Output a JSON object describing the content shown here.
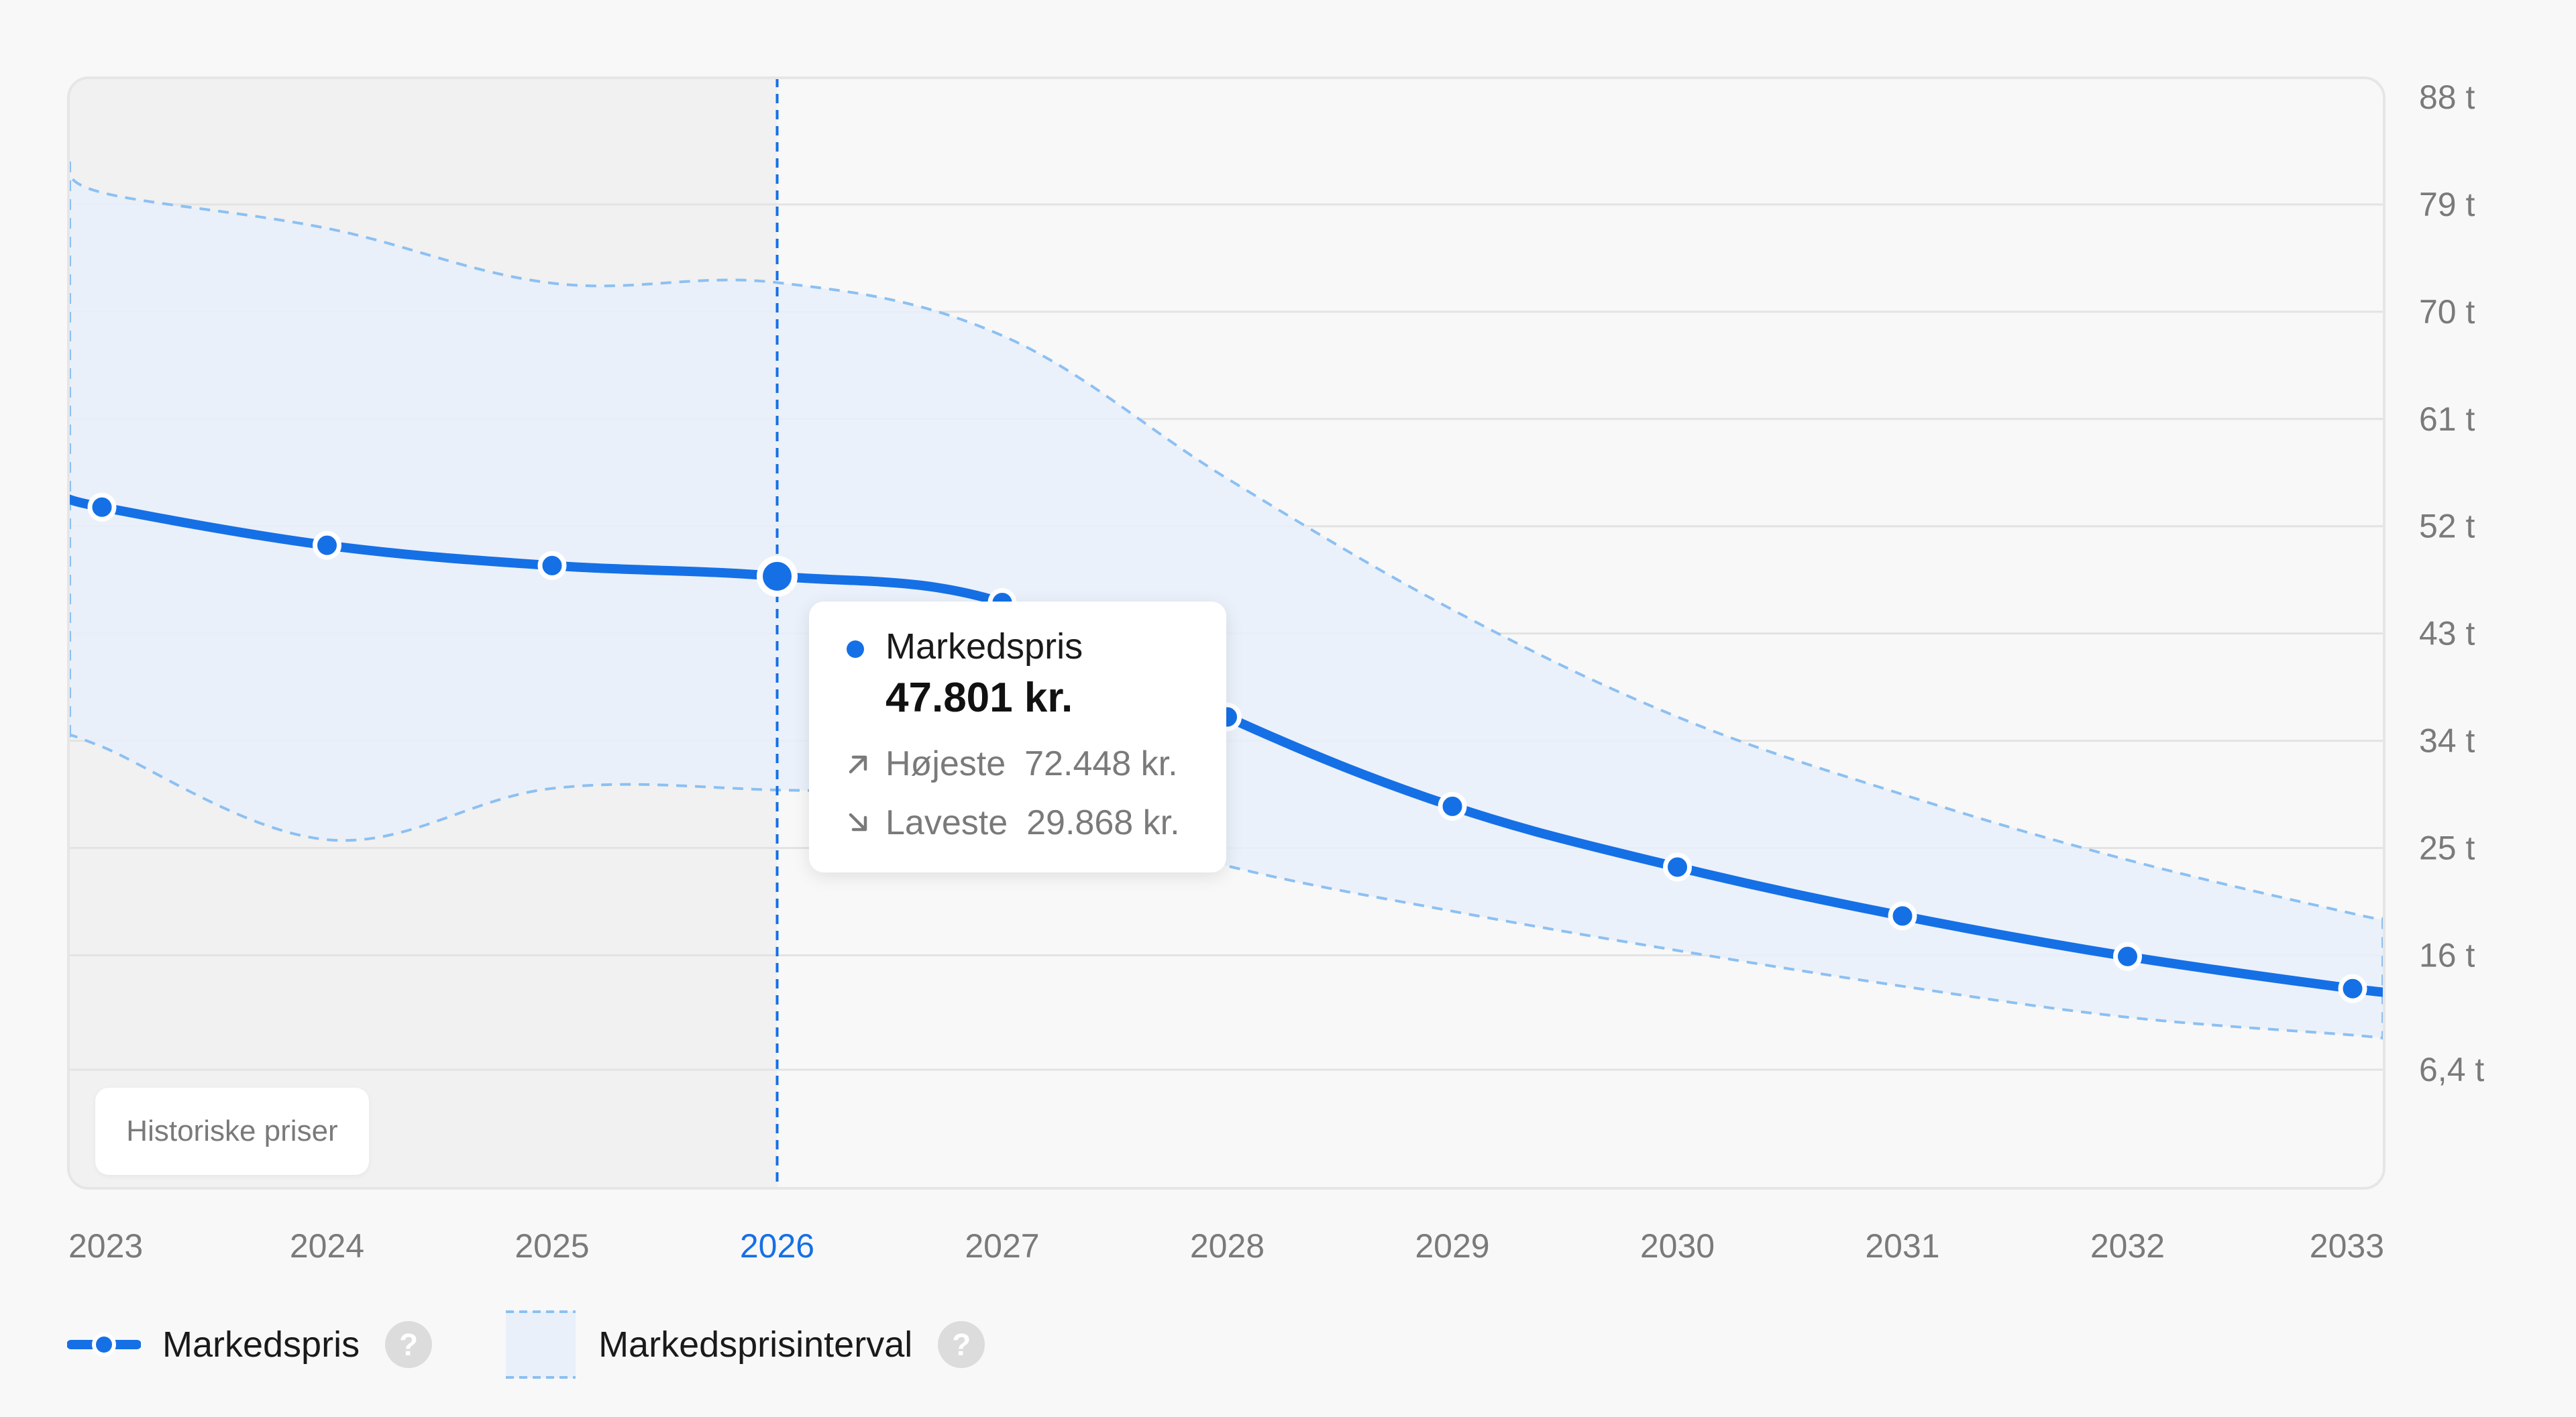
{
  "chart_data": {
    "type": "line",
    "x": [
      "2023",
      "2024",
      "2025",
      "2026",
      "2027",
      "2028",
      "2029",
      "2030",
      "2031",
      "2032",
      "2033"
    ],
    "series": [
      {
        "name": "Markedspris",
        "values": [
          53600,
          50400,
          48700,
          47801,
          45600,
          36000,
          28500,
          23400,
          19300,
          15900,
          13200
        ]
      }
    ],
    "interval": {
      "name": "Markedsprisinterval",
      "high": [
        80000,
        77000,
        72400,
        72448,
        68000,
        56000,
        45000,
        36000,
        29500,
        24000,
        19500
      ],
      "low": [
        33500,
        25700,
        30000,
        29868,
        29000,
        23500,
        19700,
        16400,
        13400,
        10800,
        9300
      ]
    },
    "y_ticks": [
      {
        "value": 88000,
        "label": "88 t"
      },
      {
        "value": 79000,
        "label": "79 t"
      },
      {
        "value": 70000,
        "label": "70 t"
      },
      {
        "value": 61000,
        "label": "61 t"
      },
      {
        "value": 52000,
        "label": "52 t"
      },
      {
        "value": 43000,
        "label": "43 t"
      },
      {
        "value": 34000,
        "label": "34 t"
      },
      {
        "value": 25000,
        "label": "25 t"
      },
      {
        "value": 16000,
        "label": "16 t"
      },
      {
        "value": 6400,
        "label": "6,4 t"
      }
    ],
    "ylim": [
      -3500,
      88000
    ],
    "active_index": 3,
    "historic_until_index": 3,
    "grid": true,
    "colors": {
      "line": "#1570e6",
      "band_fill": "#e9f0fa",
      "band_edge": "#8cc0f2",
      "historic_bg": "#f1f1f1",
      "plot_bg": "#f8f8f8",
      "grid": "#e3e3e3",
      "active_label": "#1570e6"
    }
  },
  "tooltip": {
    "series": "Markedspris",
    "value": "47.801 kr.",
    "high_label": "Højeste",
    "high_value": "72.448 kr.",
    "low_label": "Laveste",
    "low_value": "29.868 kr.",
    "high_icon": "arrow-up-right-icon",
    "low_icon": "arrow-down-right-icon"
  },
  "historic_badge": "Historiske priser",
  "legend": [
    {
      "label": "Markedspris",
      "icon": "line-marker-icon",
      "help": "?"
    },
    {
      "label": "Markedsprisinterval",
      "icon": "band-swatch-icon",
      "help": "?"
    }
  ]
}
